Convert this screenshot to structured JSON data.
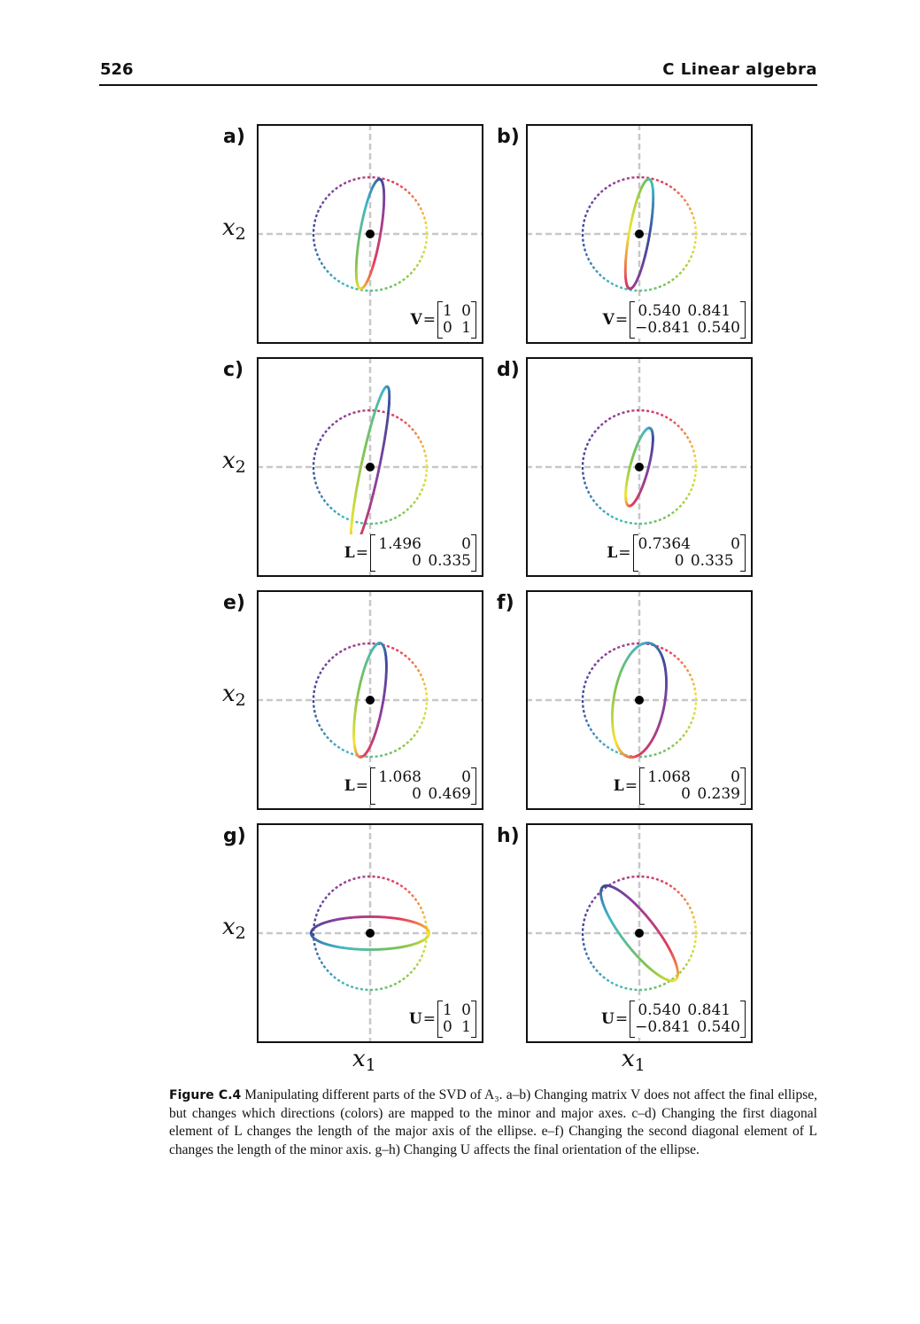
{
  "header": {
    "page_number": "526",
    "chapter_title": "C Linear algebra"
  },
  "axes": {
    "x_label_var": "x",
    "x_label_sub": "1",
    "y_label_var": "x",
    "y_label_sub": "2"
  },
  "colors": {
    "gradient": [
      "#3b4a9a",
      "#3fb6c9",
      "#7fc34f",
      "#f2e533",
      "#e83c5a",
      "#8b3f9c"
    ],
    "axis_dash": "#c8c8c8",
    "origin": "#000000"
  },
  "panels": [
    {
      "letter": "a)",
      "matrix_name": "V",
      "matrix": [
        [
          "1",
          "0"
        ],
        [
          "0",
          "1"
        ]
      ],
      "shown": {
        "angle_deg": 80,
        "a": 0.98,
        "b": 0.18,
        "phase_deg": 0
      }
    },
    {
      "letter": "b)",
      "matrix_name": "V",
      "matrix": [
        [
          "0.540",
          "0.841"
        ],
        [
          "−0.841",
          "0.540"
        ]
      ],
      "shown": {
        "angle_deg": 80,
        "a": 0.98,
        "b": 0.18,
        "phase_deg": 90
      }
    },
    {
      "letter": "c)",
      "matrix_name": "L",
      "matrix": [
        [
          "1.496",
          "0"
        ],
        [
          "0",
          "0.335"
        ]
      ],
      "shown": {
        "angle_deg": 78,
        "a": 1.45,
        "b": 0.16,
        "phase_deg": 40
      }
    },
    {
      "letter": "d)",
      "matrix_name": "L",
      "matrix": [
        [
          "0.7364",
          "0"
        ],
        [
          "0",
          "0.335"
        ]
      ],
      "shown": {
        "angle_deg": 75,
        "a": 0.71,
        "b": 0.16,
        "phase_deg": 40
      }
    },
    {
      "letter": "e)",
      "matrix_name": "L",
      "matrix": [
        [
          "1.068",
          "0"
        ],
        [
          "0",
          "0.469"
        ]
      ],
      "shown": {
        "angle_deg": 80,
        "a": 1.02,
        "b": 0.23,
        "phase_deg": 40
      }
    },
    {
      "letter": "f)",
      "matrix_name": "L",
      "matrix": [
        [
          "1.068",
          "0"
        ],
        [
          "0",
          "0.239"
        ]
      ],
      "shown": {
        "angle_deg": 80,
        "a": 1.02,
        "b": 0.45,
        "phase_deg": 40
      }
    },
    {
      "letter": "g)",
      "matrix_name": "U",
      "matrix": [
        [
          "1",
          "0"
        ],
        [
          "0",
          "1"
        ]
      ],
      "shown": {
        "angle_deg": 0,
        "a": 1.04,
        "b": 0.29,
        "phase_deg": 180
      }
    },
    {
      "letter": "h)",
      "matrix_name": "U",
      "matrix": [
        [
          "0.540",
          "0.841"
        ],
        [
          "−0.841",
          "0.540"
        ]
      ],
      "shown": {
        "angle_deg": -52,
        "a": 1.04,
        "b": 0.29,
        "phase_deg": 180
      }
    }
  ],
  "caption": {
    "label": "Figure C.4",
    "text": "Manipulating different parts of the SVD of A₃.  a–b) Changing matrix V does not affect the final ellipse, but changes which directions (colors) are mapped to the minor and major axes.  c–d) Changing the first diagonal element of L changes the length of the major axis of the ellipse. e–f) Changing the second diagonal element of L changes the length of the minor axis. g–h) Changing U affects the final orientation of the ellipse."
  }
}
